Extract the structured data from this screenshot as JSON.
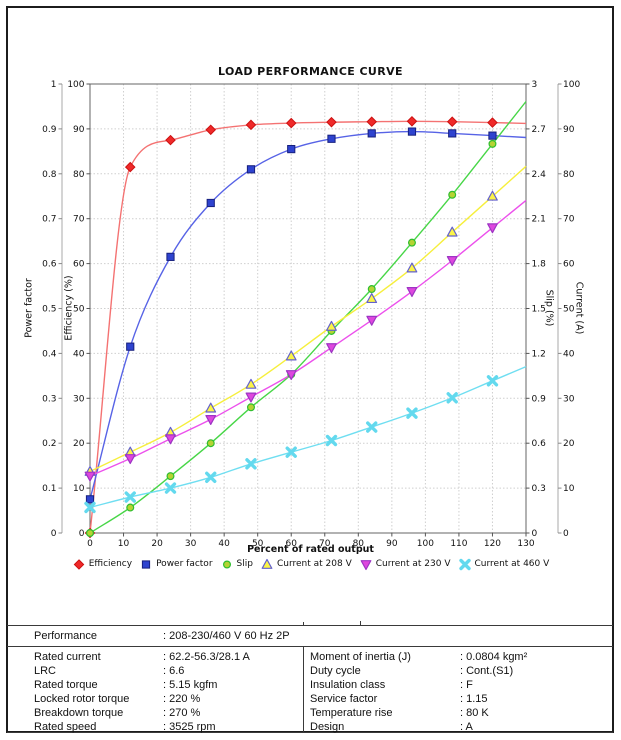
{
  "chart_data": {
    "type": "line",
    "title": "LOAD PERFORMANCE CURVE",
    "xlabel": "Percent of rated output",
    "grid": true,
    "legend_position": "bottom",
    "x": [
      0,
      12,
      24,
      36,
      48,
      60,
      72,
      84,
      96,
      108,
      120
    ],
    "axes": {
      "x": {
        "min": 0,
        "max": 130,
        "step": 10
      },
      "power_factor": {
        "label": "Power factor",
        "min": 0,
        "max": 1,
        "step": 0.1
      },
      "efficiency": {
        "label": "Efficiency (%)",
        "min": 0,
        "max": 100,
        "step": 10
      },
      "slip": {
        "label": "Slip (%)",
        "min": 0,
        "max": 3,
        "step": 0.3
      },
      "current": {
        "label": "Current (A)",
        "min": 0,
        "max": 100,
        "step": 10
      }
    },
    "series": [
      {
        "name": "Efficiency",
        "axis": "efficiency",
        "marker": "diamond",
        "marker_fill": "#ef2929",
        "marker_stroke": "#cc1111",
        "line_color": "#f47272",
        "values": [
          0,
          81.5,
          87.5,
          89.8,
          90.9,
          91.3,
          91.5,
          91.6,
          91.7,
          91.6,
          91.4
        ]
      },
      {
        "name": "Power factor",
        "axis": "power_factor",
        "marker": "square",
        "marker_fill": "#2e43cf",
        "marker_stroke": "#17207e",
        "line_color": "#5763e6",
        "values": [
          0.075,
          0.415,
          0.615,
          0.735,
          0.81,
          0.855,
          0.878,
          0.89,
          0.894,
          0.89,
          0.885
        ]
      },
      {
        "name": "Slip",
        "axis": "slip",
        "marker": "circle",
        "marker_fill": "#b5d333",
        "marker_stroke": "#2fbe2f",
        "line_color": "#47d647",
        "values": [
          0,
          0.17,
          0.38,
          0.6,
          0.84,
          1.06,
          1.35,
          1.63,
          1.94,
          2.26,
          2.6
        ]
      },
      {
        "name": "Current at 208 V",
        "axis": "current",
        "marker": "triangle-up",
        "marker_fill": "#fbf447",
        "marker_stroke": "#6361cd",
        "line_color": "#f6ef3c",
        "values": [
          13.7,
          18,
          22.4,
          27.8,
          33.1,
          39.4,
          46,
          52.2,
          59,
          67,
          75
        ]
      },
      {
        "name": "Current at 230 V",
        "axis": "current",
        "marker": "triangle-down",
        "marker_fill": "#de47de",
        "marker_stroke": "#9d35c4",
        "line_color": "#ec50ec",
        "values": [
          12.7,
          16.6,
          21,
          25.3,
          30.3,
          35.3,
          41.3,
          47.4,
          53.8,
          60.7,
          68
        ]
      },
      {
        "name": "Current at 460 V",
        "axis": "current",
        "marker": "x",
        "marker_fill": "#63d9ee",
        "marker_stroke": "#63d9ee",
        "line_color": "#6fdef1",
        "values": [
          5.7,
          8,
          10,
          12.4,
          15.4,
          18,
          20.6,
          23.6,
          26.7,
          30.1,
          33.9
        ]
      }
    ]
  },
  "spec_table": {
    "performance": {
      "label": "Performance",
      "value": ": 208-230/460 V 60 Hz 2P"
    },
    "left_rows": [
      {
        "label": "Rated current",
        "value": ": 62.2-56.3/28.1 A"
      },
      {
        "label": "LRC",
        "value": ": 6.6"
      },
      {
        "label": "Rated torque",
        "value": ": 5.15 kgfm"
      },
      {
        "label": "Locked rotor torque",
        "value": ": 220 %"
      },
      {
        "label": "Breakdown torque",
        "value": ": 270 %"
      },
      {
        "label": "Rated speed",
        "value": ": 3525 rpm"
      }
    ],
    "right_rows": [
      {
        "label": "Moment of inertia (J)",
        "value": ": 0.0804 kgm²"
      },
      {
        "label": "Duty cycle",
        "value": ": Cont.(S1)"
      },
      {
        "label": "Insulation class",
        "value": ": F"
      },
      {
        "label": "Service factor",
        "value": ": 1.15"
      },
      {
        "label": "Temperature rise",
        "value": ": 80 K"
      },
      {
        "label": "Design",
        "value": ": A"
      }
    ]
  }
}
